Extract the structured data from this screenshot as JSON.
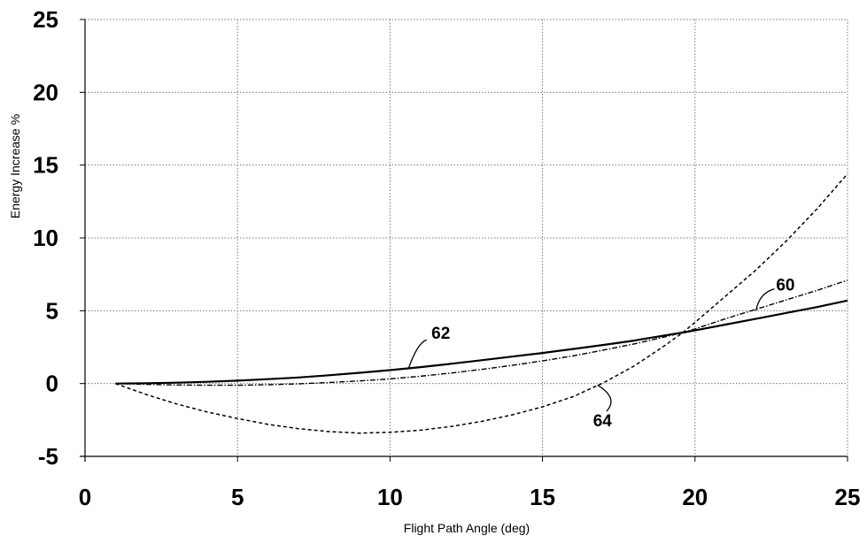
{
  "chart_data": {
    "type": "line",
    "title": "",
    "xlabel": "Flight Path Angle (deg)",
    "ylabel": "Energy Increase %",
    "xlim": [
      0,
      25
    ],
    "ylim": [
      -5,
      25
    ],
    "x_ticks": [
      "0",
      "5",
      "10",
      "15",
      "20",
      "25"
    ],
    "y_ticks": [
      "-5",
      "0",
      "5",
      "10",
      "15",
      "20",
      "25"
    ],
    "grid": true,
    "legend": "none",
    "series": [
      {
        "label": "62",
        "line_style": "solid",
        "x": [
          1,
          2,
          3,
          4,
          5,
          6,
          7,
          8,
          9,
          10,
          11,
          12,
          13,
          14,
          15,
          16,
          17,
          18,
          19,
          19.6,
          20,
          21,
          22,
          23,
          24,
          25
        ],
        "y": [
          0,
          0.02,
          0.06,
          0.12,
          0.2,
          0.3,
          0.42,
          0.57,
          0.74,
          0.92,
          1.13,
          1.36,
          1.6,
          1.85,
          2.1,
          2.37,
          2.65,
          2.95,
          3.3,
          3.5,
          3.65,
          4.05,
          4.45,
          4.85,
          5.25,
          5.7
        ]
      },
      {
        "label": "60",
        "line_style": "dash-dot",
        "x": [
          1,
          2,
          3,
          4,
          5,
          6,
          7,
          8,
          9,
          10,
          11,
          12,
          13,
          14,
          15,
          16,
          17,
          18,
          19,
          19.6,
          20,
          21,
          22,
          23,
          24,
          25
        ],
        "y": [
          0,
          -0.05,
          -0.1,
          -0.12,
          -0.12,
          -0.08,
          -0.02,
          0.07,
          0.18,
          0.32,
          0.5,
          0.72,
          0.97,
          1.25,
          1.55,
          1.9,
          2.3,
          2.72,
          3.2,
          3.5,
          3.75,
          4.45,
          5.1,
          5.75,
          6.4,
          7.1
        ]
      },
      {
        "label": "64",
        "line_style": "dashed",
        "x": [
          1,
          2,
          3,
          4,
          5,
          6,
          7,
          8,
          9,
          10,
          11,
          12,
          13,
          14,
          15,
          16,
          17,
          18,
          19,
          19.6,
          20,
          21,
          22,
          23,
          24,
          25
        ],
        "y": [
          0,
          -0.75,
          -1.4,
          -1.95,
          -2.4,
          -2.8,
          -3.1,
          -3.3,
          -3.4,
          -3.35,
          -3.2,
          -2.95,
          -2.6,
          -2.15,
          -1.6,
          -0.9,
          0.05,
          1.2,
          2.6,
          3.5,
          4.2,
          6.0,
          7.8,
          9.8,
          12.0,
          14.4
        ]
      }
    ]
  }
}
